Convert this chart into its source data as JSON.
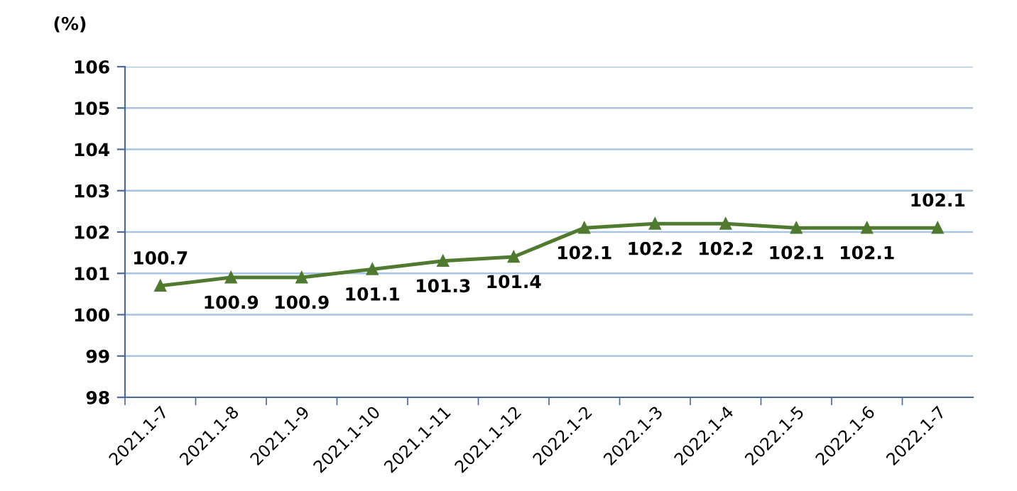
{
  "chart_data": {
    "type": "line",
    "ylabel": "(%)",
    "categories": [
      "2021.1-7",
      "2021.1-8",
      "2021.1-9",
      "2021.1-10",
      "2021.1-11",
      "2021.1-12",
      "2022.1-2",
      "2022.1-3",
      "2022.1-4",
      "2022.1-5",
      "2022.1-6",
      "2022.1-7"
    ],
    "series": [
      {
        "color": "#4f7a2f",
        "values": [
          100.7,
          100.9,
          100.9,
          101.1,
          101.3,
          101.4,
          102.1,
          102.2,
          102.2,
          102.1,
          102.1,
          102.1
        ]
      }
    ],
    "ylim": [
      98,
      106
    ],
    "yticks": [
      98,
      99,
      100,
      101,
      102,
      103,
      104,
      105,
      106
    ],
    "grid": "y",
    "marker": "triangle",
    "line_style": "solid",
    "data_labels": true
  }
}
